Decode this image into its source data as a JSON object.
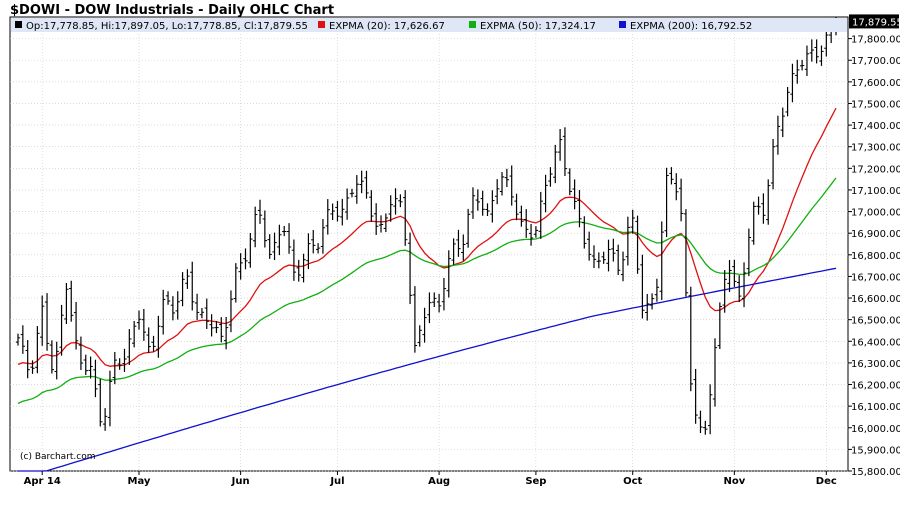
{
  "chart_data": {
    "type": "ohlc",
    "title": "$DOWI - DOW Industrials - Daily OHLC Chart",
    "colors": {
      "background": "#ffffff",
      "header_band": "#dfe6f5",
      "grid": "#c8c8c8",
      "bars": "#000000",
      "ema20": "#e01010",
      "ema50": "#10b010",
      "ema200": "#1010d0",
      "price_tag_bg": "#000000",
      "price_tag_fg": "#ffffff"
    },
    "legend": {
      "ohlc_text": "Op:17,778.85, Hi:17,897.05, Lo:17,778.85, Cl:17,879.55",
      "items": [
        {
          "label": "EXPMA (20): 17,626.67",
          "color": "#e01010"
        },
        {
          "label": "EXPMA (50): 17,324.17",
          "color": "#10b010"
        },
        {
          "label": "EXPMA (200): 16,792.52",
          "color": "#1010d0"
        }
      ]
    },
    "last_price_label": "17,879.55",
    "last_price": 17879.55,
    "watermark": "(c) Barchart.com",
    "y_axis": {
      "min": 15800,
      "max": 17900,
      "ticks": [
        15800,
        15900,
        16000,
        16100,
        16200,
        16300,
        16400,
        16500,
        16600,
        16700,
        16800,
        16900,
        17000,
        17100,
        17200,
        17300,
        17400,
        17500,
        17600,
        17700,
        17800
      ],
      "tick_labels": [
        "15,800.00",
        "15,900.00",
        "16,000.00",
        "16,100.00",
        "16,200.00",
        "16,300.00",
        "16,400.00",
        "16,500.00",
        "16,600.00",
        "16,700.00",
        "16,800.00",
        "16,900.00",
        "17,000.00",
        "17,100.00",
        "17,200.00",
        "17,300.00",
        "17,400.00",
        "17,500.00",
        "17,600.00",
        "17,700.00",
        "17,800.00"
      ]
    },
    "x_axis": {
      "labels": [
        {
          "label": "Apr 14",
          "index": 5
        },
        {
          "label": "May",
          "index": 25
        },
        {
          "label": "Jun",
          "index": 46
        },
        {
          "label": "Jul",
          "index": 66
        },
        {
          "label": "Aug",
          "index": 87
        },
        {
          "label": "Sep",
          "index": 107
        },
        {
          "label": "Oct",
          "index": 127
        },
        {
          "label": "Nov",
          "index": 148
        },
        {
          "label": "Dec",
          "index": 167
        }
      ]
    },
    "ohlc_path": [
      16400,
      16230,
      16560,
      16240,
      16660,
      16300,
      16300,
      16010,
      16280,
      16320,
      16560,
      16330,
      16560,
      16540,
      16730,
      16520,
      16480,
      16380,
      16720,
      16820,
      17000,
      16760,
      16980,
      16700,
      16800,
      16850,
      17040,
      17000,
      17130,
      17070,
      16900,
      17070,
      17000,
      16340,
      16600,
      16580,
      16800,
      16850,
      17120,
      16980,
      17150,
      17080,
      16920,
      16920,
      17140,
      17310,
      17100,
      16900,
      16720,
      16820,
      16740,
      17010,
      16500,
      16600,
      17200,
      17110,
      16140,
      15900,
      16420,
      16800,
      16560,
      16990,
      17020,
      17370,
      17540,
      17680,
      17740,
      17780,
      17880
    ]
  }
}
